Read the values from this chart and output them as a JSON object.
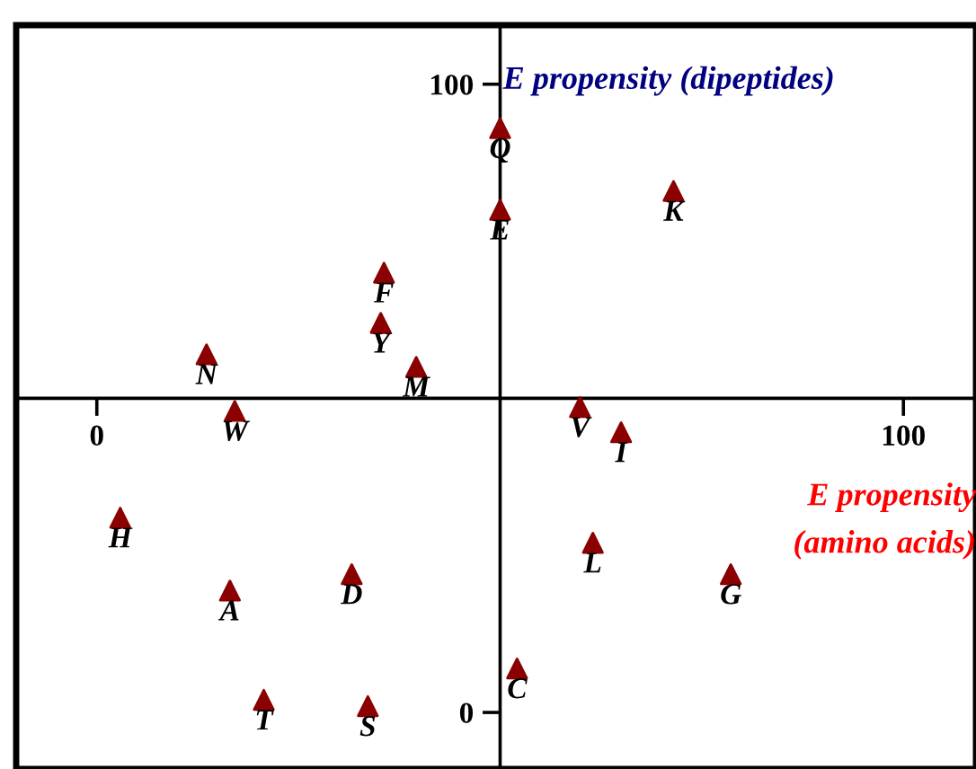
{
  "chart_data": {
    "type": "scatter",
    "xlabel": "E propensity\n(amino acids)",
    "ylabel": "E propensity (dipeptides)",
    "series": [
      {
        "color": "#8b0000",
        "marker": "triangle",
        "x": [
          50,
          50,
          71.5,
          35.6,
          35.2,
          13.6,
          39.6,
          17.1,
          59.9,
          65,
          2.9,
          61.5,
          78.6,
          16.5,
          31.6,
          52.1,
          20.7,
          33.6
        ],
        "values": [
          93,
          80,
          83,
          70,
          62,
          57,
          55,
          48,
          48.6,
          44.6,
          31,
          27,
          22,
          19.4,
          22,
          7,
          2,
          1
        ]
      }
    ],
    "annotations": [
      {
        "text": "Q",
        "x": 50,
        "y": 93
      },
      {
        "text": "E",
        "x": 50,
        "y": 80
      },
      {
        "text": "K",
        "x": 71.5,
        "y": 83
      },
      {
        "text": "F",
        "x": 35.6,
        "y": 70
      },
      {
        "text": "Y",
        "x": 35.2,
        "y": 62
      },
      {
        "text": "N",
        "x": 13.6,
        "y": 57
      },
      {
        "text": "M",
        "x": 39.6,
        "y": 55
      },
      {
        "text": "W",
        "x": 17.1,
        "y": 48
      },
      {
        "text": "V",
        "x": 59.9,
        "y": 48.6
      },
      {
        "text": "I",
        "x": 65,
        "y": 44.6
      },
      {
        "text": "H",
        "x": 2.9,
        "y": 31
      },
      {
        "text": "L",
        "x": 61.5,
        "y": 27
      },
      {
        "text": "G",
        "x": 78.6,
        "y": 22
      },
      {
        "text": "A",
        "x": 16.5,
        "y": 19.4
      },
      {
        "text": "D",
        "x": 31.6,
        "y": 22
      },
      {
        "text": "C",
        "x": 52.1,
        "y": 7
      },
      {
        "text": "T",
        "x": 20.7,
        "y": 2
      },
      {
        "text": "S",
        "x": 33.6,
        "y": 1
      }
    ],
    "xlim": [
      -10,
      109
    ],
    "ylim": [
      -9,
      109.4
    ],
    "xticks": [
      0,
      100
    ],
    "yticks": [
      0,
      100
    ],
    "grid": false,
    "legend": false
  }
}
